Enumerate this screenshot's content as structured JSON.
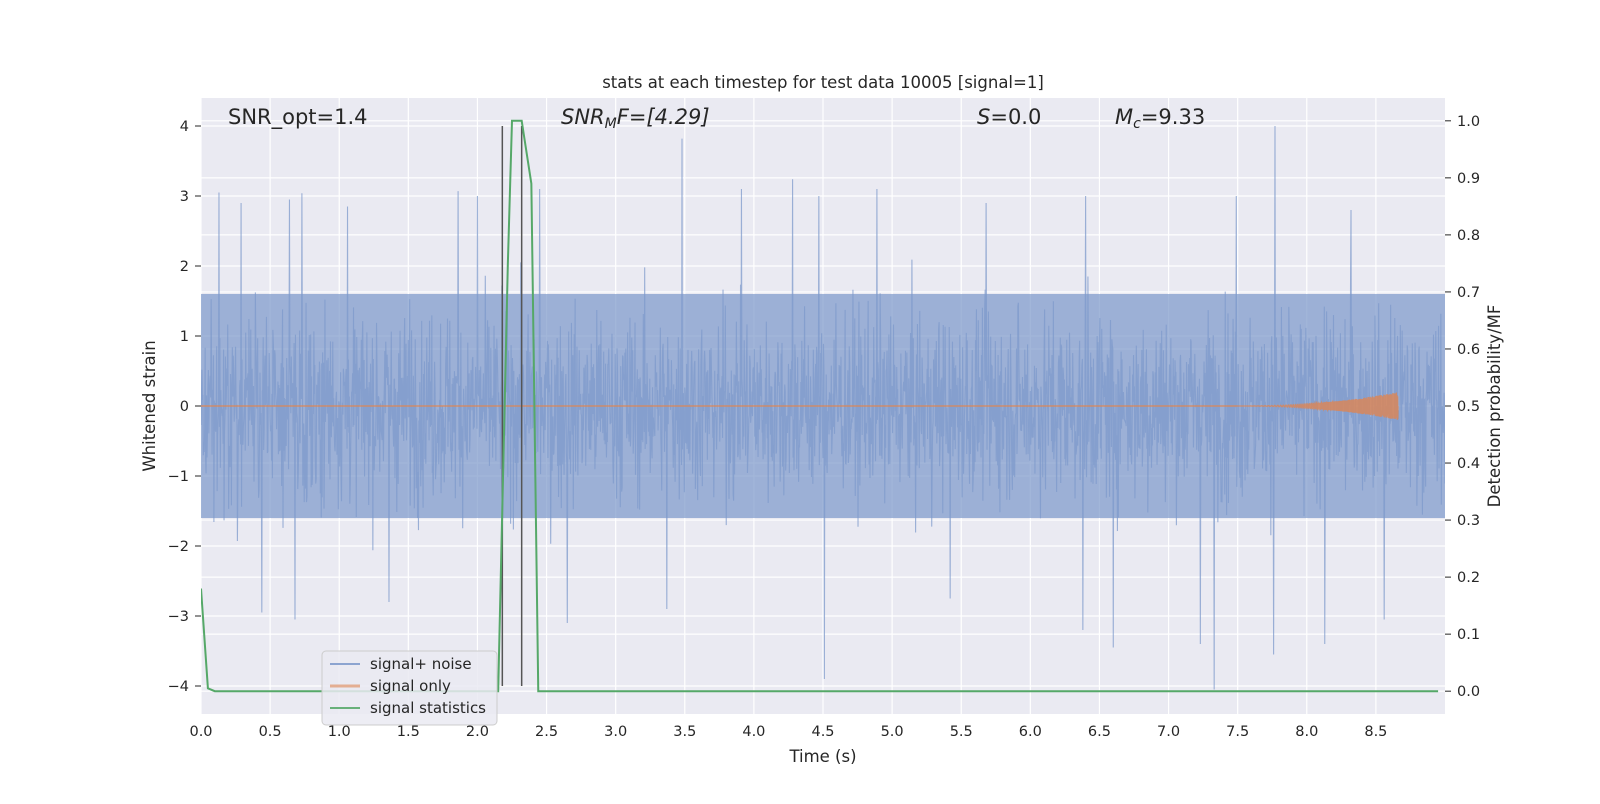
{
  "chart_data": {
    "type": "line",
    "title": "stats at each timestep for test data 10005 [signal=1]",
    "xlabel": "Time (s)",
    "ylabel": "Whitened strain",
    "y2label": "Detection probability/MF",
    "xlim": [
      0.0,
      9.0
    ],
    "ylim": [
      -4.4,
      4.4
    ],
    "y2lim": [
      -0.04,
      1.04
    ],
    "x_ticks": [
      "0.0",
      "0.5",
      "1.0",
      "1.5",
      "2.0",
      "2.5",
      "3.0",
      "3.5",
      "4.0",
      "4.5",
      "5.0",
      "5.5",
      "6.0",
      "6.5",
      "7.0",
      "7.5",
      "8.0",
      "8.5"
    ],
    "y_ticks": [
      "4",
      "3",
      "2",
      "1",
      "0",
      "−1",
      "−2",
      "−3",
      "−4"
    ],
    "y2_ticks": [
      "1.0",
      "0.9",
      "0.8",
      "0.7",
      "0.6",
      "0.5",
      "0.4",
      "0.3",
      "0.2",
      "0.1",
      "0.0"
    ],
    "grid": true,
    "legend_position": "lower-left",
    "annotations": {
      "snr_opt": "SNR_opt=1.4",
      "snr_mf_main": "SNR",
      "snr_mf_sub": "M",
      "snr_mf_rest": "F=[4.29]",
      "s_main": "S",
      "s_rest": "=0.0",
      "mc_main": "M",
      "mc_sub": "c",
      "mc_rest": "=9.33"
    },
    "series": [
      {
        "name": "signal+ noise",
        "color": "#7e9acb",
        "note_values": "white-noise strain, band approx ±1.6, peaks up to 4.0",
        "peaks": [
          [
            0.13,
            3.05
          ],
          [
            0.29,
            2.9
          ],
          [
            0.64,
            2.95
          ],
          [
            0.73,
            3.04
          ],
          [
            1.06,
            2.85
          ],
          [
            1.86,
            3.07
          ],
          [
            2.0,
            3.0
          ],
          [
            2.45,
            3.1
          ],
          [
            3.48,
            3.82
          ],
          [
            3.91,
            3.1
          ],
          [
            4.28,
            3.24
          ],
          [
            4.47,
            3.0
          ],
          [
            4.89,
            3.1
          ],
          [
            5.68,
            2.9
          ],
          [
            6.4,
            3.0
          ],
          [
            7.49,
            3.0
          ],
          [
            7.77,
            4.0
          ],
          [
            8.32,
            2.8
          ],
          [
            0.44,
            -2.95
          ],
          [
            0.68,
            -3.05
          ],
          [
            1.36,
            -2.8
          ],
          [
            2.65,
            -3.1
          ],
          [
            3.37,
            -2.9
          ],
          [
            4.51,
            -3.9
          ],
          [
            5.42,
            -2.75
          ],
          [
            6.38,
            -3.2
          ],
          [
            6.6,
            -3.45
          ],
          [
            7.23,
            -3.4
          ],
          [
            7.33,
            -4.05
          ],
          [
            7.76,
            -3.55
          ],
          [
            8.13,
            -3.4
          ],
          [
            8.56,
            -3.05
          ]
        ]
      },
      {
        "name": "signal only",
        "color": "#dd8452",
        "chirp": {
          "start": 7.5,
          "end": 8.66,
          "max_amplitude": 0.2
        }
      },
      {
        "name": "signal statistics",
        "color": "#55a868",
        "axis": "right",
        "points": [
          [
            0.0,
            0.18
          ],
          [
            0.05,
            0.005
          ],
          [
            0.1,
            0.0
          ],
          [
            2.15,
            0.0
          ],
          [
            2.22,
            0.75
          ],
          [
            2.25,
            1.0
          ],
          [
            2.32,
            1.0
          ],
          [
            2.39,
            0.89
          ],
          [
            2.44,
            0.0
          ],
          [
            8.95,
            0.0
          ]
        ]
      }
    ],
    "vertical_lines": [
      {
        "x": 2.18,
        "y_range": [
          -4,
          4
        ]
      },
      {
        "x": 2.32,
        "y_range": [
          -4,
          4
        ]
      }
    ]
  }
}
